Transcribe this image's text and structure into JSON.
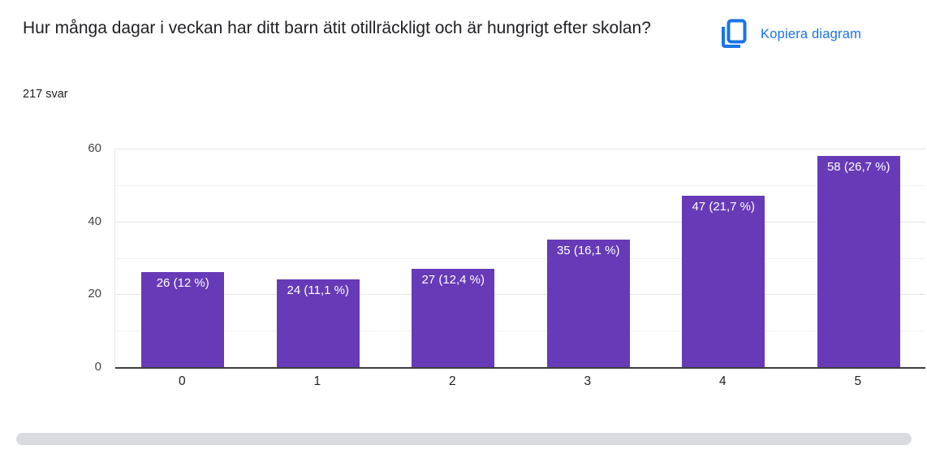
{
  "header": {
    "title": "Hur många dagar i veckan har ditt barn ätit otillräckligt och är hungrigt efter skolan?",
    "responses": "217 svar",
    "copy_button_label": "Kopiera diagram"
  },
  "chart_data": {
    "type": "bar",
    "title": "Hur många dagar i veckan har ditt barn ätit otillräckligt och är hungrigt efter skolan?",
    "subtitle": "217 svar",
    "categories": [
      "0",
      "1",
      "2",
      "3",
      "4",
      "5"
    ],
    "values": [
      26,
      24,
      27,
      35,
      47,
      58
    ],
    "bar_labels": [
      "26 (12 %)",
      "24 (11,1 %)",
      "27 (12,4 %)",
      "35 (16,1 %)",
      "47 (21,7 %)",
      "58 (26,7 %)"
    ],
    "total_responses": 217,
    "xlabel": "",
    "ylabel": "",
    "ylim": [
      0,
      60
    ],
    "yticks_labeled": [
      0,
      20,
      40,
      60
    ],
    "yticks_minor": [
      10,
      30,
      50
    ],
    "grid": true,
    "legend": "none",
    "bar_color": "#673ab7",
    "value_label_color": "#ffffff"
  },
  "colors": {
    "accent_blue": "#1a73e8",
    "bar_purple": "#673ab7",
    "text_dark": "#202124",
    "axis_line": "#3e3e3e",
    "gridline_major": "#e6e6e6",
    "gridline_minor": "#f2f2f2",
    "scrollbar_thumb": "#d9dbdf"
  }
}
